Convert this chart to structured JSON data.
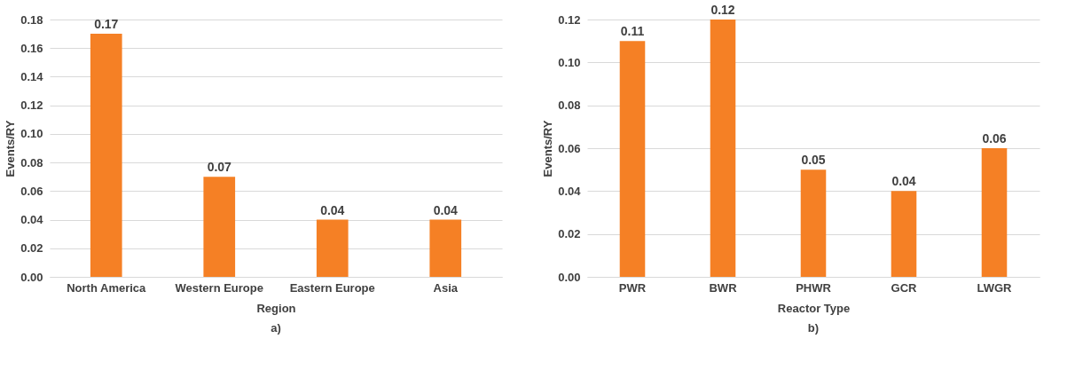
{
  "chart_data": [
    {
      "type": "bar",
      "categories": [
        "North America",
        "Western Europe",
        "Eastern Europe",
        "Asia"
      ],
      "values": [
        0.17,
        0.07,
        0.04,
        0.04
      ],
      "color": "#f58025",
      "xlabel": "Region",
      "ylabel": "Events/RY",
      "ylim": [
        0,
        0.18
      ],
      "yticks": [
        {
          "value": 0,
          "label": "0.00"
        },
        {
          "value": 0.02,
          "label": "0.02"
        },
        {
          "value": 0.04,
          "label": "0.04"
        },
        {
          "value": 0.06,
          "label": "0.06"
        },
        {
          "value": 0.08,
          "label": "0.08"
        },
        {
          "value": 0.1,
          "label": "0.10"
        },
        {
          "value": 0.12,
          "label": "0.12"
        },
        {
          "value": 0.14,
          "label": "0.14"
        },
        {
          "value": 0.16,
          "label": "0.16"
        },
        {
          "value": 0.18,
          "label": "0.18"
        }
      ],
      "grid": "y",
      "data_labels": true,
      "annotations": [
        "a)"
      ]
    },
    {
      "type": "bar",
      "categories": [
        "PWR",
        "BWR",
        "PHWR",
        "GCR",
        "LWGR"
      ],
      "values": [
        0.11,
        0.12,
        0.05,
        0.04,
        0.06
      ],
      "color": "#f58025",
      "xlabel": "Reactor Type",
      "ylabel": "Events/RY",
      "ylim": [
        0,
        0.12
      ],
      "yticks": [
        {
          "value": 0,
          "label": "0.00"
        },
        {
          "value": 0.02,
          "label": "0.02"
        },
        {
          "value": 0.04,
          "label": "0.04"
        },
        {
          "value": 0.06,
          "label": "0.06"
        },
        {
          "value": 0.08,
          "label": "0.08"
        },
        {
          "value": 0.1,
          "label": "0.10"
        },
        {
          "value": 0.12,
          "label": "0.12"
        }
      ],
      "grid": "y",
      "data_labels": true,
      "annotations": [
        "b)"
      ]
    }
  ]
}
